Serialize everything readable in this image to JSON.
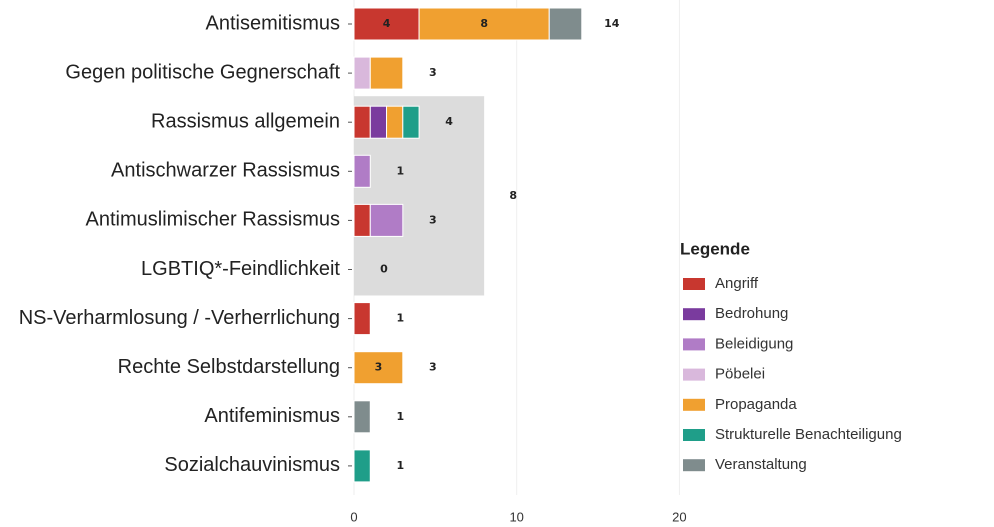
{
  "chart_data": {
    "type": "stacked_barh",
    "categories": [
      "Antisemitismus",
      "Gegen politische Gegnerschaft",
      "Rassismus allgemein",
      "Antischwarzer Rassismus",
      "Antimuslimischer Rassismus",
      "LGBTIQ*-Feindlichkeit",
      "NS-Verharmlosung / -Verherrlichung",
      "Rechte Selbstdarstellung",
      "Antifeminismus",
      "Sozialchauvinismus"
    ],
    "series": [
      {
        "name": "Angriff",
        "color": "#c8372f",
        "values": [
          4,
          0,
          1,
          0,
          1,
          0,
          1,
          0,
          0,
          0
        ],
        "value_labels": [
          "4",
          null,
          null,
          null,
          null,
          null,
          null,
          null,
          null,
          null
        ]
      },
      {
        "name": "Bedrohung",
        "color": "#7a3b9e",
        "values": [
          0,
          0,
          1,
          0,
          0,
          0,
          0,
          0,
          0,
          0
        ]
      },
      {
        "name": "Beleidigung",
        "color": "#b07cc6",
        "values": [
          0,
          0,
          0,
          1,
          2,
          0,
          0,
          0,
          0,
          0
        ]
      },
      {
        "name": "Pöbelei",
        "color": "#d9b8dc",
        "values": [
          0,
          1,
          0,
          0,
          0,
          0,
          0,
          0,
          0,
          0
        ]
      },
      {
        "name": "Propaganda",
        "color": "#f0a030",
        "values": [
          8,
          2,
          1,
          0,
          0,
          0,
          0,
          3,
          0,
          0
        ],
        "value_labels": [
          "8",
          null,
          null,
          null,
          null,
          null,
          null,
          "3",
          null,
          null
        ]
      },
      {
        "name": "Strukturelle Benachteiligung",
        "color": "#1f9e89",
        "values": [
          0,
          0,
          1,
          0,
          0,
          0,
          0,
          0,
          0,
          1
        ]
      },
      {
        "name": "Veranstaltung",
        "color": "#7f8c8d",
        "values": [
          2,
          0,
          0,
          0,
          0,
          0,
          0,
          0,
          1,
          0
        ]
      }
    ],
    "totals": [
      14,
      3,
      4,
      1,
      3,
      0,
      1,
      3,
      1,
      1
    ],
    "groups": [
      {
        "categories": [
          "Rassismus allgemein",
          "Antischwarzer Rassismus",
          "Antimuslimischer Rassismus",
          "LGBTIQ*-Feindlichkeit"
        ],
        "value": 8,
        "color": "#dcdcdc"
      }
    ],
    "xlim": [
      0,
      25
    ],
    "xticks": [
      0,
      10,
      20
    ],
    "grid": true,
    "legend_title": "Legende",
    "legend": "right"
  }
}
